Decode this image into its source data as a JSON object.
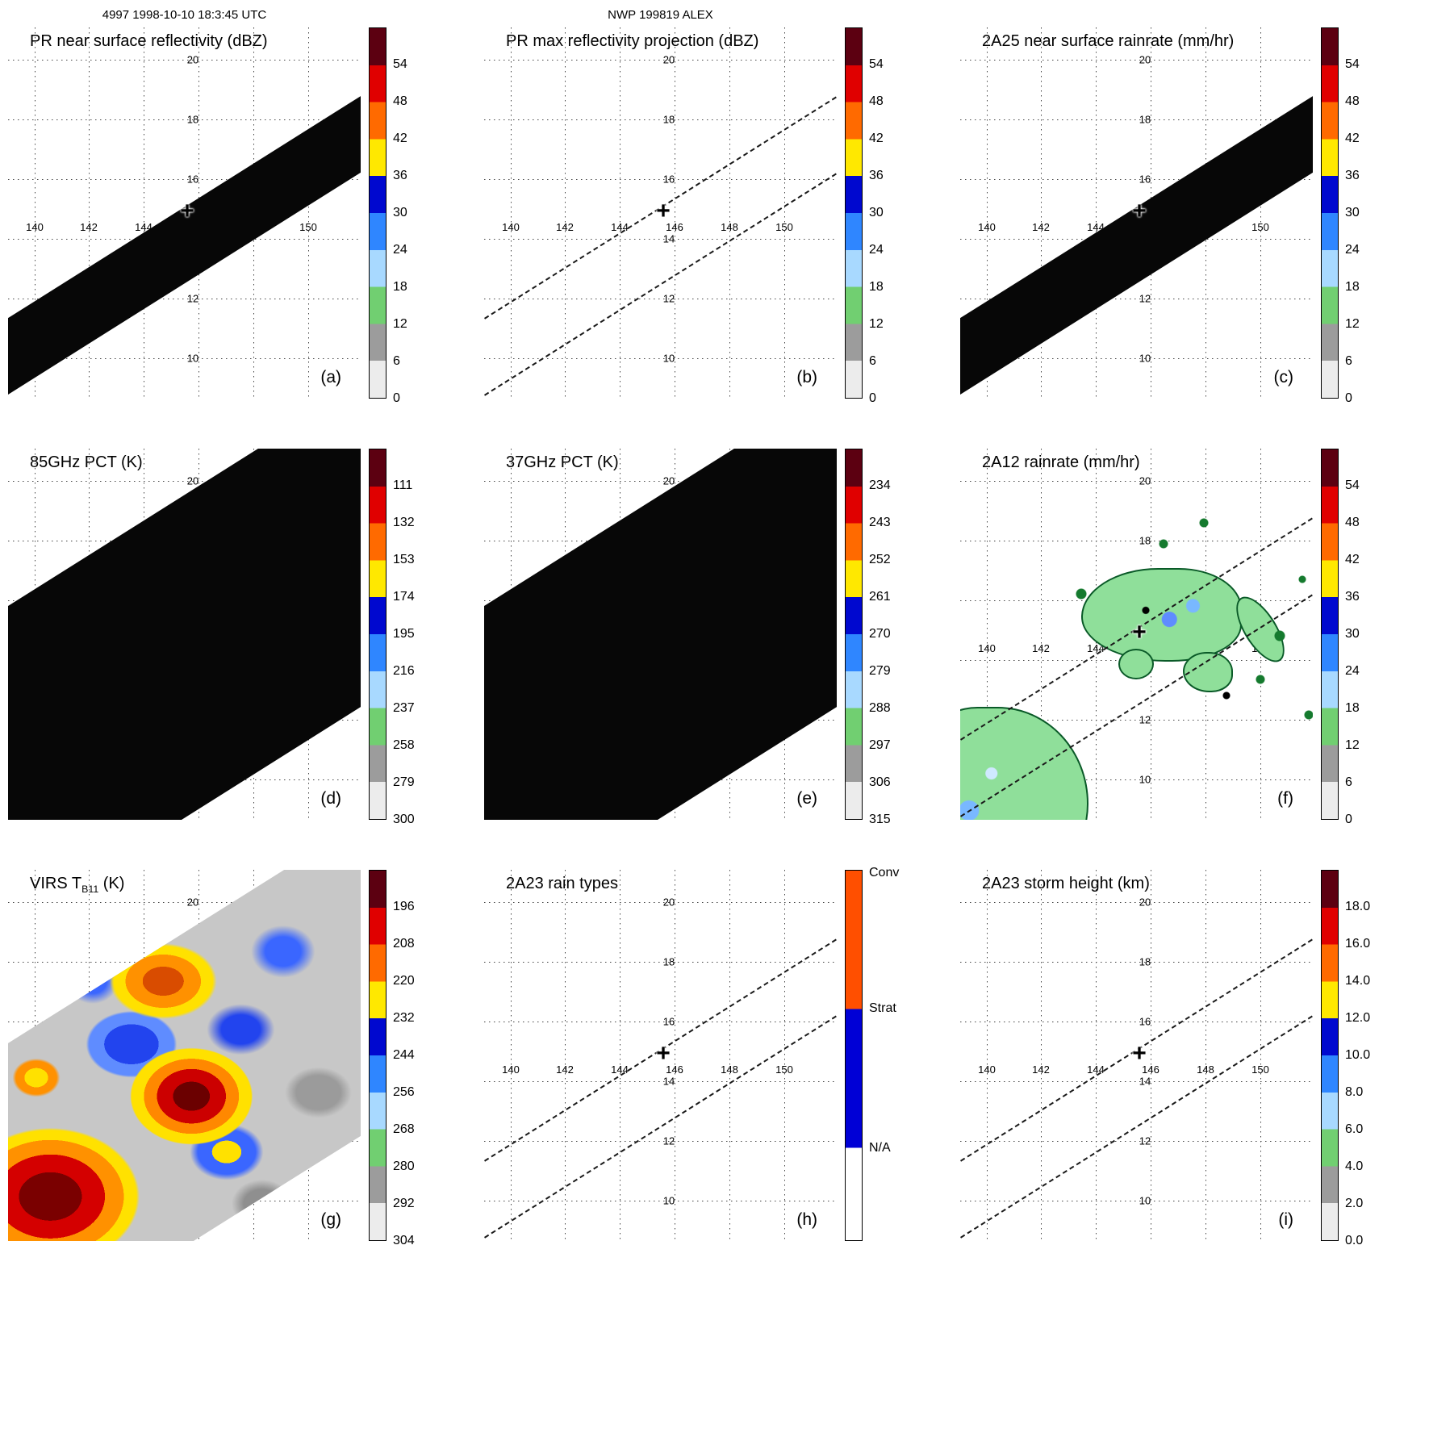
{
  "header": {
    "left": "4997 1998-10-10 18:3:45 UTC",
    "center": "NWP 199819 ALEX"
  },
  "grid": {
    "lon_labels": [
      "140",
      "142",
      "144",
      "146",
      "148",
      "150"
    ],
    "lat_labels": [
      "20",
      "18",
      "16",
      "14",
      "12",
      "10"
    ]
  },
  "palette": {
    "over_max": "#5c0011",
    "red": "#e00000",
    "orange": "#ff6a00",
    "yellow": "#ffe800",
    "blue_dark": "#0008cf",
    "blue": "#2f86ff",
    "blue_pale": "#a8d9ff",
    "green": "#71cf71",
    "gray": "#9c9c9c",
    "gray_light": "#ececec",
    "conv": "#ff4f00",
    "strat": "#0000d6",
    "na": "#ffffff"
  },
  "panels": [
    {
      "letter": "(a)",
      "title_pre": "PR near surface reflectivity (dBZ)",
      "title_sub": "",
      "title_post": "",
      "cbar_ticks": [
        "54",
        "48",
        "42",
        "36",
        "30",
        "24",
        "18",
        "12",
        "6",
        "0"
      ]
    },
    {
      "letter": "(b)",
      "title_pre": "PR max reflectivity projection (dBZ)",
      "title_sub": "",
      "title_post": "",
      "cbar_ticks": [
        "54",
        "48",
        "42",
        "36",
        "30",
        "24",
        "18",
        "12",
        "6",
        "0"
      ]
    },
    {
      "letter": "(c)",
      "title_pre": "2A25 near surface rainrate (mm/hr)",
      "title_sub": "",
      "title_post": "",
      "cbar_ticks": [
        "54",
        "48",
        "42",
        "36",
        "30",
        "24",
        "18",
        "12",
        "6",
        "0"
      ]
    },
    {
      "letter": "(d)",
      "title_pre": "85GHz PCT (K)",
      "title_sub": "",
      "title_post": "",
      "cbar_ticks": [
        "111",
        "132",
        "153",
        "174",
        "195",
        "216",
        "237",
        "258",
        "279",
        "300"
      ]
    },
    {
      "letter": "(e)",
      "title_pre": "37GHz PCT (K)",
      "title_sub": "",
      "title_post": "",
      "cbar_ticks": [
        "234",
        "243",
        "252",
        "261",
        "270",
        "279",
        "288",
        "297",
        "306",
        "315"
      ]
    },
    {
      "letter": "(f)",
      "title_pre": "2A12 rainrate (mm/hr)",
      "title_sub": "",
      "title_post": "",
      "cbar_ticks": [
        "54",
        "48",
        "42",
        "36",
        "30",
        "24",
        "18",
        "12",
        "6",
        "0"
      ]
    },
    {
      "letter": "(g)",
      "title_pre": "VIRS T",
      "title_sub": "B11",
      "title_post": " (K)",
      "cbar_ticks": [
        "196",
        "208",
        "220",
        "232",
        "244",
        "256",
        "268",
        "280",
        "292",
        "304"
      ]
    },
    {
      "letter": "(h)",
      "title_pre": "2A23 rain types",
      "title_sub": "",
      "title_post": "",
      "cbar_labels": [
        "Conv",
        "Strat",
        "N/A"
      ]
    },
    {
      "letter": "(i)",
      "title_pre": "2A23 storm height (km)",
      "title_sub": "",
      "title_post": "",
      "cbar_ticks": [
        "18.0",
        "16.0",
        "14.0",
        "12.0",
        "10.0",
        "8.0",
        "6.0",
        "4.0",
        "2.0",
        "0.0"
      ]
    }
  ],
  "chart_data": [
    {
      "panel": "a",
      "type": "heatmap",
      "title": "PR near surface reflectivity (dBZ)",
      "colorbar_ticks": [
        54,
        48,
        42,
        36,
        30,
        24,
        18,
        12,
        6,
        0
      ],
      "lon_gridlines": [
        140,
        142,
        144,
        146,
        148,
        150
      ],
      "lat_gridlines": [
        20,
        18,
        16,
        14,
        12,
        10
      ],
      "marker_lonlat": [
        145.6,
        14.9
      ],
      "content": "Narrow PR swath band running SW to NE, rendered essentially at/below 0 dBZ (black)"
    },
    {
      "panel": "b",
      "type": "map",
      "title": "PR max reflectivity projection (dBZ)",
      "colorbar_ticks": [
        54,
        48,
        42,
        36,
        30,
        24,
        18,
        12,
        6,
        0
      ],
      "lon_gridlines": [
        140,
        142,
        144,
        146,
        148,
        150
      ],
      "lat_gridlines": [
        20,
        18,
        16,
        14,
        12,
        10
      ],
      "marker_lonlat": [
        145.6,
        14.9
      ],
      "content": "Empty field; two dashed diagonal lines mark the PR swath edges"
    },
    {
      "panel": "c",
      "type": "heatmap",
      "title": "2A25 near surface rainrate (mm/hr)",
      "colorbar_ticks": [
        54,
        48,
        42,
        36,
        30,
        24,
        18,
        12,
        6,
        0
      ],
      "lon_gridlines": [
        140,
        142,
        144,
        146,
        148,
        150
      ],
      "lat_gridlines": [
        20,
        18,
        16,
        14,
        12,
        10
      ],
      "marker_lonlat": [
        145.6,
        14.9
      ],
      "content": "Narrow PR swath band rendered black (no detected rain)"
    },
    {
      "panel": "d",
      "type": "heatmap",
      "title": "85GHz PCT (K)",
      "colorbar_ticks": [
        111,
        132,
        153,
        174,
        195,
        216,
        237,
        258,
        279,
        300
      ],
      "lon_gridlines": [
        140,
        142,
        144,
        146,
        148,
        150
      ],
      "lat_gridlines": [
        20,
        18,
        16,
        14,
        12,
        10
      ],
      "content": "Wide TMI swath covering most of the panel, rendered black"
    },
    {
      "panel": "e",
      "type": "heatmap",
      "title": "37GHz PCT (K)",
      "colorbar_ticks": [
        234,
        243,
        252,
        261,
        270,
        279,
        288,
        297,
        306,
        315
      ],
      "lon_gridlines": [
        140,
        142,
        144,
        146,
        148,
        150
      ],
      "lat_gridlines": [
        20,
        18,
        16,
        14,
        12,
        10
      ],
      "content": "Wide TMI swath covering most of the panel, rendered black"
    },
    {
      "panel": "f",
      "type": "heatmap",
      "title": "2A12 rainrate (mm/hr)",
      "colorbar_ticks": [
        54,
        48,
        42,
        36,
        30,
        24,
        18,
        12,
        6,
        0
      ],
      "lon_gridlines": [
        140,
        142,
        144,
        146,
        148,
        150
      ],
      "lat_gridlines": [
        20,
        18,
        16,
        14,
        12,
        10
      ],
      "marker_lonlat": [
        145.6,
        14.9
      ],
      "content": "Scattered light-rain areas (green ~1-6 mm/hr) outlined in black with small embedded blue cells; main cluster near 144-148E 13-16N, larger area in SW corner; dashed PR swath edges"
    },
    {
      "panel": "g",
      "type": "heatmap",
      "title": "VIRS TB11 (K)",
      "colorbar_ticks": [
        196,
        208,
        220,
        232,
        244,
        256,
        268,
        280,
        292,
        304
      ],
      "lon_gridlines": [
        140,
        142,
        144,
        146,
        148,
        150
      ],
      "lat_gridlines": [
        20,
        18,
        16,
        14,
        12,
        10
      ],
      "content": "IR brightness temperature image: warm gray background with cold convective cells (yellow/orange/dark-red, <232 K) near 142-146E 13-16N and in the SW corner; blue regions ~244-256 K"
    },
    {
      "panel": "h",
      "type": "map",
      "title": "2A23 rain types",
      "colorbar_labels": [
        "Conv",
        "Strat",
        "N/A"
      ],
      "lon_gridlines": [
        140,
        142,
        144,
        146,
        148,
        150
      ],
      "lat_gridlines": [
        20,
        18,
        16,
        14,
        12,
        10
      ],
      "marker_lonlat": [
        145.6,
        14.9
      ],
      "content": "Empty field; dashed PR swath edges only"
    },
    {
      "panel": "i",
      "type": "heatmap",
      "title": "2A23 storm height (km)",
      "colorbar_ticks": [
        18.0,
        16.0,
        14.0,
        12.0,
        10.0,
        8.0,
        6.0,
        4.0,
        2.0,
        0.0
      ],
      "lon_gridlines": [
        140,
        142,
        144,
        146,
        148,
        150
      ],
      "lat_gridlines": [
        20,
        18,
        16,
        14,
        12,
        10
      ],
      "marker_lonlat": [
        145.6,
        14.9
      ],
      "content": "Empty field; dashed PR swath edges only"
    }
  ]
}
